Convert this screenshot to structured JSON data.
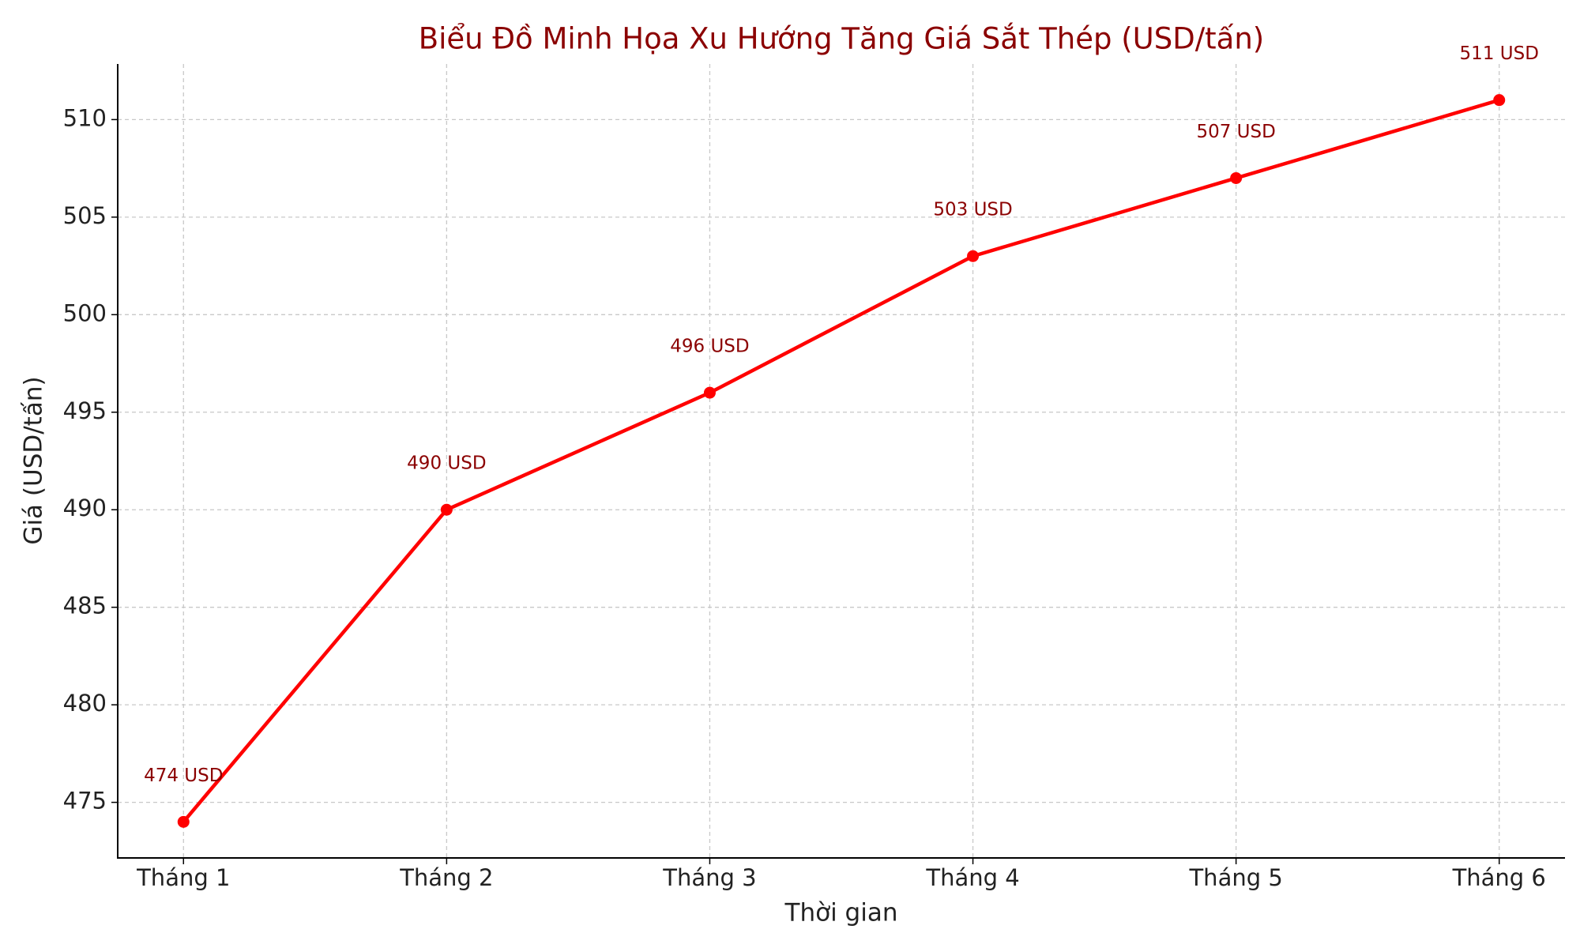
{
  "chart_data": {
    "type": "line",
    "title": "Biểu Đồ Minh Họa Xu Hướng Tăng Giá Sắt Thép (USD/tấn)",
    "x_label": "Thời gian",
    "y_label": "Giá (USD/tấn)",
    "categories": [
      "Tháng 1",
      "Tháng 2",
      "Tháng 3",
      "Tháng 4",
      "Tháng 5",
      "Tháng 6"
    ],
    "series": [
      {
        "color": "#ff0000",
        "values": [
          474,
          490,
          496,
          503,
          507,
          511
        ],
        "value_labels": [
          "474 USD",
          "490 USD",
          "496 USD",
          "503 USD",
          "507 USD",
          "511 USD"
        ]
      }
    ],
    "ylim": [
      472.15,
      512.85
    ],
    "yticks": [
      475,
      480,
      485,
      490,
      495,
      500,
      505,
      510
    ],
    "grid": true
  }
}
